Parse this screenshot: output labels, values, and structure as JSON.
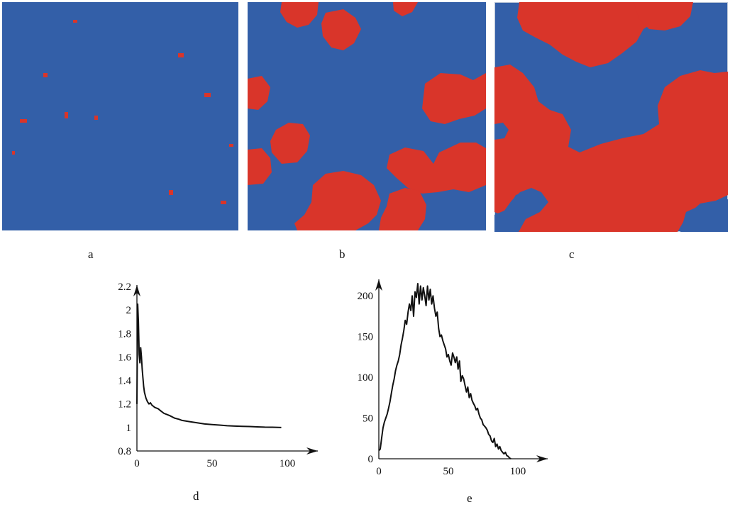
{
  "figure": {
    "colors": {
      "background_phase": "#335fa8",
      "cluster_phase": "#d9352a"
    },
    "panels": [
      {
        "id": "a",
        "label": "a",
        "description_clusters": "sparse"
      },
      {
        "id": "b",
        "label": "b",
        "description_clusters": "medium"
      },
      {
        "id": "c",
        "label": "c",
        "description_clusters": "dense"
      }
    ],
    "chart_labels": {
      "d": "d",
      "e": "e"
    }
  },
  "chart_data": [
    {
      "id": "d",
      "type": "line",
      "title": "",
      "xlabel": "",
      "ylabel": "",
      "xlim": [
        0,
        100
      ],
      "ylim": [
        0.8,
        2.2
      ],
      "xticks": [
        0,
        50,
        100
      ],
      "yticks": [
        0.8,
        1,
        1.2,
        1.4,
        1.6,
        1.8,
        2,
        2.2
      ],
      "ytick_labels": [
        "0.8",
        "1",
        "1.2",
        "1.4",
        "1.6",
        "1.8",
        "2",
        "2.2"
      ],
      "xtick_labels": [
        "0",
        "50",
        "100"
      ],
      "line_color": "#111111",
      "x": [
        0,
        0.5,
        1,
        1.5,
        2,
        2.5,
        3,
        3.5,
        4,
        4.5,
        5,
        6,
        7,
        8,
        9,
        10,
        12,
        14,
        16,
        18,
        20,
        22,
        25,
        28,
        30,
        35,
        40,
        45,
        50,
        55,
        60,
        65,
        70,
        75,
        80,
        85,
        90,
        96
      ],
      "y": [
        1.2,
        2.05,
        1.9,
        1.62,
        1.55,
        1.68,
        1.6,
        1.5,
        1.42,
        1.35,
        1.3,
        1.25,
        1.22,
        1.2,
        1.21,
        1.19,
        1.17,
        1.16,
        1.14,
        1.12,
        1.11,
        1.1,
        1.08,
        1.07,
        1.06,
        1.05,
        1.04,
        1.03,
        1.025,
        1.02,
        1.015,
        1.012,
        1.01,
        1.008,
        1.005,
        1.003,
        1.002,
        1.0
      ],
      "grid": false
    },
    {
      "id": "e",
      "type": "line",
      "title": "",
      "xlabel": "",
      "ylabel": "",
      "xlim": [
        0,
        100
      ],
      "ylim": [
        0,
        215
      ],
      "xticks": [
        0,
        50,
        100
      ],
      "yticks": [
        0,
        50,
        100,
        150,
        200
      ],
      "ytick_labels": [
        "0",
        "50",
        "100",
        "150",
        "200"
      ],
      "xtick_labels": [
        "0",
        "50",
        "100"
      ],
      "line_color": "#111111",
      "x": [
        0,
        1,
        2,
        3,
        4,
        5,
        6,
        7,
        8,
        9,
        10,
        11,
        12,
        13,
        14,
        15,
        16,
        17,
        18,
        19,
        20,
        21,
        22,
        23,
        24,
        25,
        26,
        27,
        28,
        29,
        30,
        31,
        32,
        33,
        34,
        35,
        36,
        37,
        38,
        39,
        40,
        41,
        42,
        43,
        44,
        45,
        46,
        47,
        48,
        49,
        50,
        51,
        52,
        53,
        54,
        55,
        56,
        57,
        58,
        59,
        60,
        61,
        62,
        63,
        64,
        65,
        66,
        67,
        68,
        69,
        70,
        71,
        72,
        73,
        74,
        75,
        76,
        77,
        78,
        79,
        80,
        81,
        82,
        83,
        84,
        85,
        86,
        87,
        88,
        89,
        90,
        91,
        92,
        93,
        94,
        95
      ],
      "y": [
        10,
        12,
        25,
        38,
        45,
        50,
        55,
        62,
        70,
        80,
        90,
        98,
        108,
        115,
        120,
        128,
        140,
        148,
        158,
        170,
        165,
        180,
        190,
        182,
        200,
        175,
        205,
        198,
        215,
        190,
        212,
        195,
        210,
        200,
        188,
        212,
        195,
        208,
        190,
        200,
        185,
        175,
        180,
        160,
        150,
        152,
        145,
        140,
        135,
        125,
        128,
        120,
        115,
        130,
        125,
        118,
        125,
        110,
        120,
        95,
        102,
        98,
        90,
        82,
        88,
        75,
        80,
        72,
        68,
        65,
        60,
        62,
        55,
        50,
        48,
        42,
        40,
        38,
        35,
        30,
        28,
        22,
        20,
        25,
        15,
        18,
        12,
        15,
        10,
        8,
        6,
        8,
        4,
        3,
        1,
        0
      ],
      "grid": false
    }
  ]
}
